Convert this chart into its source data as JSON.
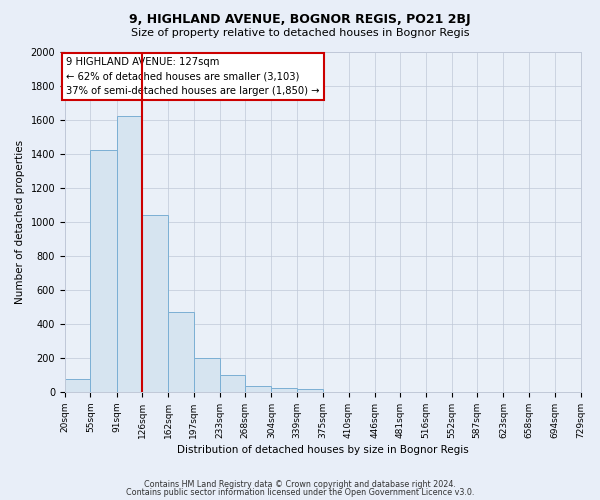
{
  "title": "9, HIGHLAND AVENUE, BOGNOR REGIS, PO21 2BJ",
  "subtitle": "Size of property relative to detached houses in Bognor Regis",
  "xlabel": "Distribution of detached houses by size in Bognor Regis",
  "ylabel": "Number of detached properties",
  "bin_labels": [
    "20sqm",
    "55sqm",
    "91sqm",
    "126sqm",
    "162sqm",
    "197sqm",
    "233sqm",
    "268sqm",
    "304sqm",
    "339sqm",
    "375sqm",
    "410sqm",
    "446sqm",
    "481sqm",
    "516sqm",
    "552sqm",
    "587sqm",
    "623sqm",
    "658sqm",
    "694sqm",
    "729sqm"
  ],
  "bin_edges": [
    20,
    55,
    91,
    126,
    162,
    197,
    233,
    268,
    304,
    339,
    375,
    410,
    446,
    481,
    516,
    552,
    587,
    623,
    658,
    694,
    729
  ],
  "bar_values": [
    75,
    1420,
    1620,
    1040,
    470,
    200,
    100,
    35,
    25,
    15,
    0,
    0,
    0,
    0,
    0,
    0,
    0,
    0,
    0,
    0
  ],
  "bar_color": "#d6e4f0",
  "bar_edge_color": "#7bafd4",
  "red_line_x": 126,
  "annotation_text": "9 HIGHLAND AVENUE: 127sqm\n← 62% of detached houses are smaller (3,103)\n37% of semi-detached houses are larger (1,850) →",
  "annotation_box_facecolor": "#ffffff",
  "annotation_box_edgecolor": "#cc0000",
  "footer1": "Contains HM Land Registry data © Crown copyright and database right 2024.",
  "footer2": "Contains public sector information licensed under the Open Government Licence v3.0.",
  "background_color": "#e8eef8",
  "plot_bg_color": "#eaf0f8",
  "ylim": [
    0,
    2000
  ],
  "yticks": [
    0,
    200,
    400,
    600,
    800,
    1000,
    1200,
    1400,
    1600,
    1800,
    2000
  ],
  "red_line_color": "#cc0000",
  "grid_color": "#c0c8d8",
  "title_fontsize": 9,
  "subtitle_fontsize": 8
}
